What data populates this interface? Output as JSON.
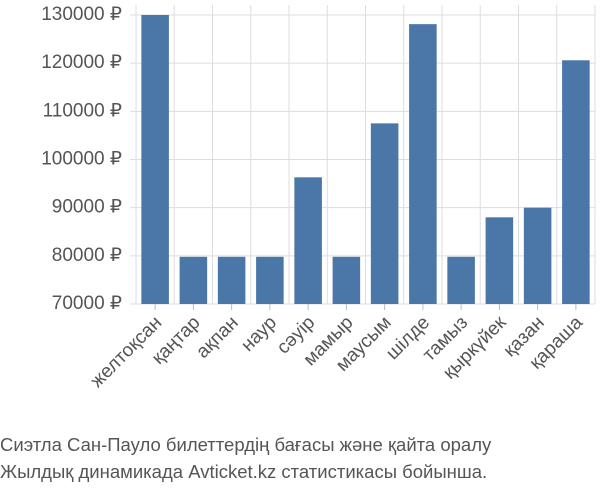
{
  "chart_data": {
    "type": "bar",
    "categories": [
      "желтоқсан",
      "қаңтар",
      "ақпан",
      "наур",
      "сәуір",
      "мамыр",
      "маусым",
      "шілде",
      "тамыз",
      "қыркүйек",
      "қазан",
      "қараша"
    ],
    "values": [
      130000,
      79800,
      79800,
      79800,
      96300,
      79800,
      107500,
      128100,
      79800,
      88000,
      90000,
      120600
    ],
    "color": "#4a76a8",
    "ylim": [
      70000,
      130000
    ],
    "yticks": [
      {
        "value": 70000,
        "label": "70000 ₽"
      },
      {
        "value": 80000,
        "label": "80000 ₽"
      },
      {
        "value": 90000,
        "label": "90000 ₽"
      },
      {
        "value": 100000,
        "label": "100000 ₽"
      },
      {
        "value": 110000,
        "label": "110000 ₽"
      },
      {
        "value": 120000,
        "label": "120000 ₽"
      },
      {
        "value": 130000,
        "label": "130000 ₽"
      }
    ],
    "grid": true,
    "caption": [
      "Сиэтла Сан-Пауло билеттердің бағасы және қайта оралу",
      "Жылдық динамикада Avticket.kz статистикасы бойынша."
    ]
  }
}
